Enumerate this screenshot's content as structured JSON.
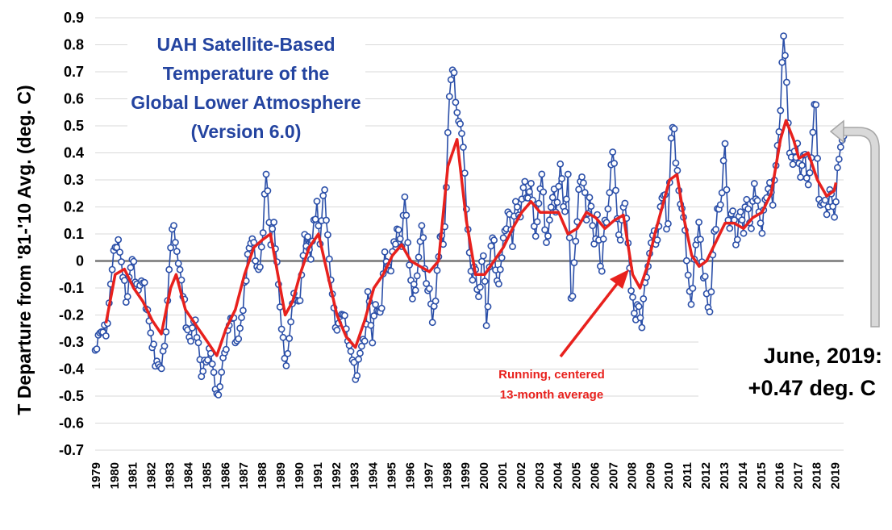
{
  "chart_data": {
    "type": "line",
    "title_lines": [
      "UAH Satellite-Based",
      "Temperature of the",
      "Global Lower Atmosphere",
      "(Version 6.0)"
    ],
    "ylabel": "T Departure from '81-'10 Avg. (deg. C)",
    "xlabel": "",
    "ylim": [
      -0.7,
      0.9
    ],
    "yticks": [
      "0.9",
      "0.8",
      "0.7",
      "0.6",
      "0.5",
      "0.4",
      "0.3",
      "0.2",
      "0.1",
      "0",
      "-0.1",
      "-0.2",
      "-0.3",
      "-0.4",
      "-0.5",
      "-0.6",
      "-0.7"
    ],
    "xticks": [
      "1979",
      "1980",
      "1981",
      "1982",
      "1983",
      "1984",
      "1985",
      "1986",
      "1987",
      "1988",
      "1989",
      "1990",
      "1991",
      "1992",
      "1993",
      "1994",
      "1995",
      "1996",
      "1997",
      "1998",
      "1999",
      "2000",
      "2001",
      "2002",
      "2003",
      "2004",
      "2005",
      "2006",
      "2007",
      "2008",
      "2009",
      "2010",
      "2011",
      "2012",
      "2013",
      "2014",
      "2015",
      "2016",
      "2017",
      "2018",
      "2019"
    ],
    "x_start": "1978-12",
    "x_end": "2019-06",
    "grid": true,
    "zero_line": true,
    "monthly_series": {
      "color": "#2b4fa8",
      "keypoints": [
        [
          1978.92,
          -0.33
        ],
        [
          1979.1,
          -0.27
        ],
        [
          1979.3,
          -0.26
        ],
        [
          1979.5,
          -0.28
        ],
        [
          1979.8,
          -0.05
        ],
        [
          1980.0,
          0.05
        ],
        [
          1980.15,
          0.09
        ],
        [
          1980.4,
          -0.05
        ],
        [
          1980.6,
          -0.16
        ],
        [
          1980.8,
          -0.03
        ],
        [
          1981.0,
          0.0
        ],
        [
          1981.2,
          -0.1
        ],
        [
          1981.5,
          -0.08
        ],
        [
          1981.8,
          -0.2
        ],
        [
          1982.0,
          -0.32
        ],
        [
          1982.3,
          -0.38
        ],
        [
          1982.5,
          -0.4
        ],
        [
          1982.7,
          -0.3
        ],
        [
          1982.9,
          -0.05
        ],
        [
          1983.1,
          0.13
        ],
        [
          1983.3,
          0.05
        ],
        [
          1983.5,
          -0.03
        ],
        [
          1983.7,
          -0.15
        ],
        [
          1983.9,
          -0.25
        ],
        [
          1984.1,
          -0.3
        ],
        [
          1984.3,
          -0.2
        ],
        [
          1984.5,
          -0.3
        ],
        [
          1984.7,
          -0.45
        ],
        [
          1984.9,
          -0.38
        ],
        [
          1985.1,
          -0.32
        ],
        [
          1985.3,
          -0.4
        ],
        [
          1985.6,
          -0.5
        ],
        [
          1985.9,
          -0.35
        ],
        [
          1986.1,
          -0.25
        ],
        [
          1986.3,
          -0.2
        ],
        [
          1986.6,
          -0.3
        ],
        [
          1986.9,
          -0.2
        ],
        [
          1987.2,
          0.05
        ],
        [
          1987.5,
          0.07
        ],
        [
          1987.8,
          -0.05
        ],
        [
          1988.0,
          0.1
        ],
        [
          1988.2,
          0.36
        ],
        [
          1988.4,
          0.05
        ],
        [
          1988.6,
          0.15
        ],
        [
          1988.8,
          -0.05
        ],
        [
          1989.0,
          -0.25
        ],
        [
          1989.2,
          -0.38
        ],
        [
          1989.4,
          -0.3
        ],
        [
          1989.7,
          -0.1
        ],
        [
          1990.0,
          -0.15
        ],
        [
          1990.2,
          0.05
        ],
        [
          1990.4,
          0.1
        ],
        [
          1990.6,
          0.0
        ],
        [
          1990.9,
          0.24
        ],
        [
          1991.1,
          0.05
        ],
        [
          1991.3,
          0.3
        ],
        [
          1991.5,
          0.1
        ],
        [
          1991.7,
          -0.1
        ],
        [
          1991.9,
          -0.25
        ],
        [
          1992.2,
          -0.2
        ],
        [
          1992.5,
          -0.25
        ],
        [
          1992.8,
          -0.35
        ],
        [
          1993.0,
          -0.44
        ],
        [
          1993.2,
          -0.35
        ],
        [
          1993.5,
          -0.3
        ],
        [
          1993.7,
          -0.08
        ],
        [
          1993.9,
          -0.32
        ],
        [
          1994.1,
          -0.15
        ],
        [
          1994.4,
          -0.2
        ],
        [
          1994.6,
          0.05
        ],
        [
          1994.9,
          -0.05
        ],
        [
          1995.1,
          0.08
        ],
        [
          1995.3,
          0.13
        ],
        [
          1995.5,
          0.05
        ],
        [
          1995.7,
          0.27
        ],
        [
          1995.9,
          0.0
        ],
        [
          1996.1,
          -0.15
        ],
        [
          1996.4,
          0.0
        ],
        [
          1996.6,
          0.14
        ],
        [
          1996.8,
          -0.08
        ],
        [
          1997.0,
          -0.1
        ],
        [
          1997.2,
          -0.25
        ],
        [
          1997.4,
          -0.05
        ],
        [
          1997.6,
          0.1
        ],
        [
          1997.8,
          0.05
        ],
        [
          1998.0,
          0.47
        ],
        [
          1998.1,
          0.63
        ],
        [
          1998.3,
          0.73
        ],
        [
          1998.5,
          0.55
        ],
        [
          1998.7,
          0.5
        ],
        [
          1998.9,
          0.35
        ],
        [
          1999.1,
          0.1
        ],
        [
          1999.3,
          -0.08
        ],
        [
          1999.5,
          -0.03
        ],
        [
          1999.7,
          -0.15
        ],
        [
          1999.9,
          0.05
        ],
        [
          2000.1,
          -0.26
        ],
        [
          2000.3,
          0.05
        ],
        [
          2000.5,
          0.08
        ],
        [
          2000.7,
          -0.1
        ],
        [
          2000.9,
          0.0
        ],
        [
          2001.1,
          0.12
        ],
        [
          2001.3,
          0.2
        ],
        [
          2001.5,
          0.05
        ],
        [
          2001.7,
          0.25
        ],
        [
          2001.9,
          0.15
        ],
        [
          2002.1,
          0.28
        ],
        [
          2002.3,
          0.22
        ],
        [
          2002.5,
          0.29
        ],
        [
          2002.7,
          0.1
        ],
        [
          2002.9,
          0.2
        ],
        [
          2003.1,
          0.33
        ],
        [
          2003.3,
          0.05
        ],
        [
          2003.5,
          0.15
        ],
        [
          2003.7,
          0.25
        ],
        [
          2003.9,
          0.2
        ],
        [
          2004.1,
          0.37
        ],
        [
          2004.3,
          0.15
        ],
        [
          2004.5,
          0.33
        ],
        [
          2004.7,
          -0.22
        ],
        [
          2004.9,
          0.05
        ],
        [
          2005.1,
          0.28
        ],
        [
          2005.3,
          0.32
        ],
        [
          2005.5,
          0.15
        ],
        [
          2005.7,
          0.25
        ],
        [
          2005.9,
          0.05
        ],
        [
          2006.1,
          0.18
        ],
        [
          2006.3,
          -0.08
        ],
        [
          2006.5,
          0.15
        ],
        [
          2006.7,
          0.2
        ],
        [
          2006.9,
          0.42
        ],
        [
          2007.1,
          0.25
        ],
        [
          2007.3,
          0.05
        ],
        [
          2007.5,
          0.2
        ],
        [
          2007.7,
          0.15
        ],
        [
          2007.9,
          -0.1
        ],
        [
          2008.1,
          -0.2
        ],
        [
          2008.3,
          -0.15
        ],
        [
          2008.5,
          -0.25
        ],
        [
          2008.7,
          -0.05
        ],
        [
          2008.9,
          0.02
        ],
        [
          2009.1,
          0.1
        ],
        [
          2009.3,
          0.05
        ],
        [
          2009.5,
          0.2
        ],
        [
          2009.7,
          0.25
        ],
        [
          2009.9,
          0.1
        ],
        [
          2010.1,
          0.48
        ],
        [
          2010.2,
          0.5
        ],
        [
          2010.4,
          0.35
        ],
        [
          2010.6,
          0.2
        ],
        [
          2010.8,
          0.15
        ],
        [
          2011.0,
          -0.05
        ],
        [
          2011.2,
          -0.18
        ],
        [
          2011.4,
          0.05
        ],
        [
          2011.6,
          0.15
        ],
        [
          2011.8,
          -0.05
        ],
        [
          2012.0,
          -0.12
        ],
        [
          2012.2,
          -0.2
        ],
        [
          2012.4,
          0.1
        ],
        [
          2012.6,
          0.2
        ],
        [
          2012.8,
          0.21
        ],
        [
          2013.0,
          0.44
        ],
        [
          2013.2,
          0.1
        ],
        [
          2013.4,
          0.2
        ],
        [
          2013.6,
          0.05
        ],
        [
          2013.8,
          0.2
        ],
        [
          2014.0,
          0.1
        ],
        [
          2014.2,
          0.25
        ],
        [
          2014.4,
          0.1
        ],
        [
          2014.6,
          0.3
        ],
        [
          2014.8,
          0.2
        ],
        [
          2015.0,
          0.1
        ],
        [
          2015.2,
          0.25
        ],
        [
          2015.4,
          0.3
        ],
        [
          2015.6,
          0.2
        ],
        [
          2015.8,
          0.4
        ],
        [
          2016.0,
          0.55
        ],
        [
          2016.15,
          0.85
        ],
        [
          2016.3,
          0.72
        ],
        [
          2016.5,
          0.4
        ],
        [
          2016.7,
          0.35
        ],
        [
          2016.9,
          0.45
        ],
        [
          2017.1,
          0.3
        ],
        [
          2017.3,
          0.42
        ],
        [
          2017.5,
          0.28
        ],
        [
          2017.7,
          0.4
        ],
        [
          2017.9,
          0.62
        ],
        [
          2018.1,
          0.2
        ],
        [
          2018.3,
          0.22
        ],
        [
          2018.5,
          0.17
        ],
        [
          2018.7,
          0.28
        ],
        [
          2018.9,
          0.14
        ],
        [
          2019.1,
          0.36
        ],
        [
          2019.3,
          0.44
        ],
        [
          2019.46,
          0.47
        ]
      ]
    },
    "smoothed_series": {
      "color": "#e8211d",
      "keypoints": [
        [
          1979.5,
          -0.23
        ],
        [
          1980.0,
          -0.05
        ],
        [
          1980.5,
          -0.03
        ],
        [
          1981.0,
          -0.1
        ],
        [
          1981.5,
          -0.15
        ],
        [
          1982.0,
          -0.22
        ],
        [
          1982.5,
          -0.27
        ],
        [
          1983.0,
          -0.1
        ],
        [
          1983.3,
          -0.05
        ],
        [
          1983.8,
          -0.18
        ],
        [
          1984.5,
          -0.25
        ],
        [
          1985.0,
          -0.3
        ],
        [
          1985.5,
          -0.35
        ],
        [
          1986.0,
          -0.25
        ],
        [
          1986.5,
          -0.18
        ],
        [
          1987.0,
          -0.05
        ],
        [
          1987.5,
          0.05
        ],
        [
          1988.0,
          0.08
        ],
        [
          1988.4,
          0.1
        ],
        [
          1988.8,
          -0.05
        ],
        [
          1989.2,
          -0.2
        ],
        [
          1989.6,
          -0.15
        ],
        [
          1990.0,
          -0.05
        ],
        [
          1990.5,
          0.05
        ],
        [
          1991.0,
          0.1
        ],
        [
          1991.5,
          -0.05
        ],
        [
          1992.0,
          -0.2
        ],
        [
          1992.5,
          -0.28
        ],
        [
          1993.0,
          -0.32
        ],
        [
          1993.5,
          -0.22
        ],
        [
          1994.0,
          -0.1
        ],
        [
          1994.5,
          -0.05
        ],
        [
          1995.0,
          0.02
        ],
        [
          1995.5,
          0.06
        ],
        [
          1996.0,
          0.0
        ],
        [
          1996.5,
          -0.02
        ],
        [
          1997.0,
          -0.04
        ],
        [
          1997.5,
          0.0
        ],
        [
          1998.0,
          0.35
        ],
        [
          1998.5,
          0.45
        ],
        [
          1999.0,
          0.15
        ],
        [
          1999.5,
          -0.05
        ],
        [
          2000.0,
          -0.05
        ],
        [
          2000.5,
          0.0
        ],
        [
          2001.0,
          0.05
        ],
        [
          2001.5,
          0.12
        ],
        [
          2002.0,
          0.18
        ],
        [
          2002.5,
          0.22
        ],
        [
          2003.0,
          0.18
        ],
        [
          2003.5,
          0.18
        ],
        [
          2004.0,
          0.18
        ],
        [
          2004.5,
          0.1
        ],
        [
          2005.0,
          0.12
        ],
        [
          2005.5,
          0.18
        ],
        [
          2006.0,
          0.16
        ],
        [
          2006.5,
          0.12
        ],
        [
          2007.0,
          0.15
        ],
        [
          2007.5,
          0.17
        ],
        [
          2008.0,
          -0.05
        ],
        [
          2008.4,
          -0.1
        ],
        [
          2008.8,
          -0.02
        ],
        [
          2009.2,
          0.1
        ],
        [
          2009.6,
          0.2
        ],
        [
          2010.0,
          0.3
        ],
        [
          2010.4,
          0.32
        ],
        [
          2010.8,
          0.15
        ],
        [
          2011.2,
          0.02
        ],
        [
          2011.6,
          -0.02
        ],
        [
          2012.0,
          0.0
        ],
        [
          2012.5,
          0.07
        ],
        [
          2013.0,
          0.14
        ],
        [
          2013.5,
          0.14
        ],
        [
          2014.0,
          0.12
        ],
        [
          2014.5,
          0.16
        ],
        [
          2015.0,
          0.18
        ],
        [
          2015.5,
          0.25
        ],
        [
          2016.0,
          0.45
        ],
        [
          2016.3,
          0.52
        ],
        [
          2016.7,
          0.45
        ],
        [
          2017.0,
          0.38
        ],
        [
          2017.5,
          0.4
        ],
        [
          2018.0,
          0.3
        ],
        [
          2018.5,
          0.24
        ],
        [
          2018.9,
          0.26
        ],
        [
          2019.0,
          0.29
        ]
      ]
    },
    "annotations": {
      "smooth_label": [
        "Running, centered",
        "13-month average"
      ],
      "latest_label": [
        "June, 2019:",
        "+0.47 deg. C"
      ]
    }
  }
}
